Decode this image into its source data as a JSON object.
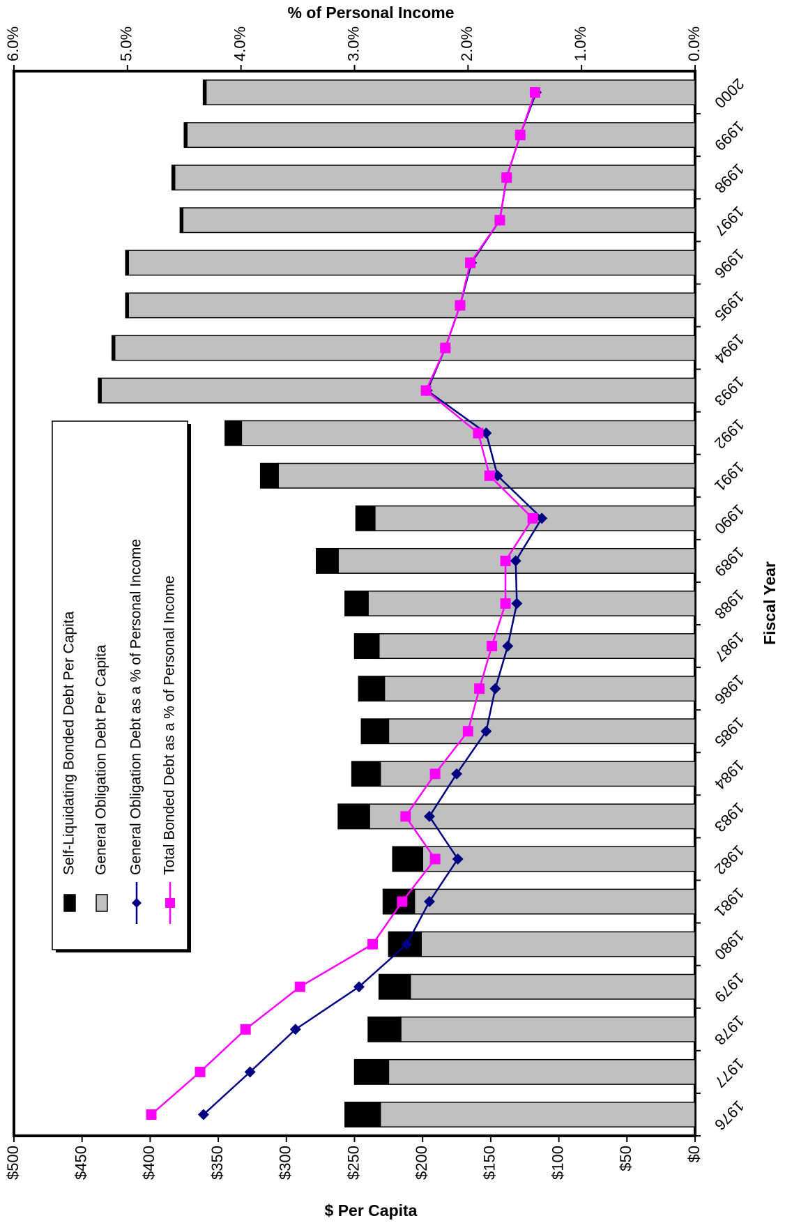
{
  "chart_data": {
    "type": "bar",
    "orientation": "horizontal-stacked-with-lines",
    "categories": [
      "1976",
      "1977",
      "1978",
      "1979",
      "1980",
      "1981",
      "1982",
      "1983",
      "1984",
      "1985",
      "1986",
      "1987",
      "1988",
      "1989",
      "1990",
      "1991",
      "1992",
      "1993",
      "1994",
      "1995",
      "1996",
      "1997",
      "1998",
      "1999",
      "2000"
    ],
    "bar_series": [
      {
        "name": "Self-Liquidating Bonded Debt Per Capita",
        "color": "#000000",
        "values": [
          26,
          25,
          24,
          23,
          24,
          23,
          22,
          23,
          21,
          20,
          19,
          18,
          17,
          16,
          14,
          13,
          12,
          2,
          2,
          2,
          2,
          2,
          2,
          2,
          2
        ]
      },
      {
        "name": "General Obligation Debt Per Capita",
        "color": "#c0c0c0",
        "values": [
          231,
          225,
          216,
          209,
          201,
          206,
          200,
          239,
          231,
          225,
          228,
          232,
          240,
          262,
          235,
          306,
          333,
          436,
          426,
          416,
          416,
          376,
          382,
          373,
          359
        ]
      }
    ],
    "line_series": [
      {
        "name": "General Obligation Debt as a % of Personal Income",
        "color": "#000080",
        "marker": "diamond",
        "values": [
          4.33,
          3.92,
          3.52,
          2.96,
          2.54,
          2.34,
          2.09,
          2.34,
          2.1,
          1.84,
          1.76,
          1.65,
          1.57,
          1.58,
          1.35,
          1.74,
          1.84,
          2.36,
          2.2,
          2.07,
          1.97,
          1.72,
          1.66,
          1.54,
          1.4
        ]
      },
      {
        "name": "Total Bonded Debt as a % of Personal Income",
        "color": "#ff00ff",
        "marker": "square",
        "values": [
          4.79,
          4.36,
          3.96,
          3.48,
          2.84,
          2.58,
          2.29,
          2.55,
          2.29,
          2.0,
          1.9,
          1.79,
          1.67,
          1.67,
          1.43,
          1.81,
          1.91,
          2.37,
          2.2,
          2.07,
          1.98,
          1.72,
          1.66,
          1.54,
          1.41
        ]
      }
    ],
    "x_axis_bottom": {
      "title": "$ Per Capita",
      "ticks": [
        "$500",
        "$450",
        "$400",
        "$350",
        "$300",
        "$250",
        "$200",
        "$150",
        "$100",
        "$50",
        "$0"
      ],
      "range": [
        0,
        500
      ]
    },
    "x_axis_top": {
      "title": "% of Personal Income",
      "ticks": [
        "6.0%",
        "5.0%",
        "4.0%",
        "3.0%",
        "2.0%",
        "1.0%",
        "0.0%"
      ],
      "range": [
        0,
        6
      ]
    },
    "y_axis": {
      "title": "Fiscal Year"
    },
    "legend_position": "left",
    "grid": false
  }
}
